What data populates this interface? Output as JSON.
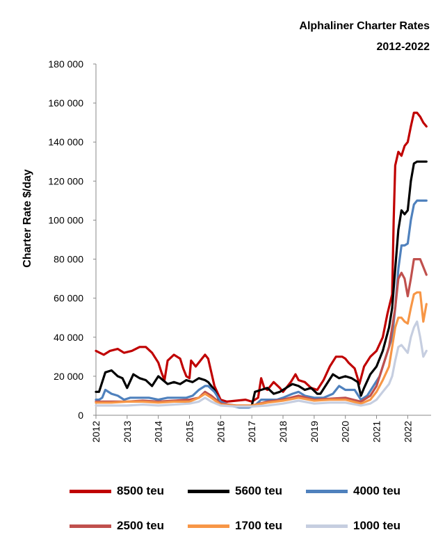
{
  "chart_data": {
    "type": "line",
    "title": "Alphaliner Charter Rates",
    "subtitle": "2012-2022",
    "ylabel": "Charter Rate $/day",
    "xlabel": "",
    "ylim": [
      0,
      180000
    ],
    "xlim": [
      2012,
      2022.75
    ],
    "yticks": [
      0,
      20000,
      40000,
      60000,
      80000,
      100000,
      120000,
      140000,
      160000,
      180000
    ],
    "ytick_labels": [
      "0",
      "20 000",
      "40 000",
      "60 000",
      "80 000",
      "100 000",
      "120 000",
      "140 000",
      "160 000",
      "180 000"
    ],
    "xticks": [
      2012,
      2013,
      2014,
      2015,
      2016,
      2017,
      2018,
      2019,
      2020,
      2021,
      2022
    ],
    "xtick_labels": [
      "2012",
      "2013",
      "2014",
      "2015",
      "2016",
      "2017",
      "2018",
      "2019",
      "2020",
      "2021",
      "2022"
    ],
    "grid": false,
    "legend_position": "bottom",
    "series": [
      {
        "name": "8500 teu",
        "color": "#C00000",
        "x": [
          2012,
          2012.25,
          2012.45,
          2012.7,
          2012.9,
          2013.15,
          2013.4,
          2013.6,
          2013.8,
          2014.0,
          2014.1,
          2014.2,
          2014.3,
          2014.5,
          2014.7,
          2014.8,
          2014.9,
          2015.0,
          2015.05,
          2015.2,
          2015.4,
          2015.5,
          2015.6,
          2015.8,
          2016.0,
          2016.2,
          2016.5,
          2016.8,
          2017.0,
          2017.2,
          2017.3,
          2017.4,
          2017.5,
          2017.7,
          2017.9,
          2018.0,
          2018.1,
          2018.25,
          2018.4,
          2018.5,
          2018.7,
          2018.9,
          2019.1,
          2019.3,
          2019.5,
          2019.7,
          2019.9,
          2020.0,
          2020.1,
          2020.3,
          2020.45,
          2020.6,
          2020.8,
          2021.0,
          2021.2,
          2021.35,
          2021.5,
          2021.55,
          2021.6,
          2021.7,
          2021.8,
          2021.9,
          2022.0,
          2022.1,
          2022.2,
          2022.3,
          2022.4,
          2022.5,
          2022.6
        ],
        "y": [
          33000,
          31000,
          33000,
          34000,
          32000,
          33000,
          35000,
          35000,
          32000,
          27000,
          22000,
          18000,
          28000,
          31000,
          29000,
          24000,
          20000,
          19000,
          28000,
          25000,
          29000,
          31000,
          29000,
          15000,
          8000,
          7000,
          7500,
          8000,
          7000,
          9000,
          19000,
          14000,
          13000,
          17000,
          14000,
          12000,
          14000,
          17000,
          21000,
          18000,
          17000,
          14000,
          13000,
          18000,
          25000,
          30000,
          30000,
          29000,
          27000,
          24000,
          16000,
          25000,
          30000,
          33000,
          40000,
          52000,
          62000,
          100000,
          128000,
          135000,
          133000,
          138000,
          140000,
          148000,
          155000,
          155000,
          153000,
          150000,
          148000
        ]
      },
      {
        "name": "5600 teu",
        "color": "#000000",
        "x": [
          2012,
          2012.1,
          2012.2,
          2012.3,
          2012.5,
          2012.7,
          2012.85,
          2013.0,
          2013.2,
          2013.4,
          2013.6,
          2013.8,
          2014.0,
          2014.15,
          2014.3,
          2014.5,
          2014.7,
          2014.9,
          2015.1,
          2015.3,
          2015.5,
          2015.6,
          2015.8,
          2016.0,
          2016.3,
          2016.6,
          2016.9,
          2017.0,
          2017.1,
          2017.3,
          2017.5,
          2017.7,
          2017.9,
          2018.1,
          2018.3,
          2018.5,
          2018.7,
          2018.9,
          2019.1,
          2019.2,
          2019.4,
          2019.6,
          2019.8,
          2020.0,
          2020.2,
          2020.4,
          2020.5,
          2020.6,
          2020.8,
          2021.0,
          2021.2,
          2021.4,
          2021.5,
          2021.6,
          2021.7,
          2021.8,
          2021.9,
          2022.0,
          2022.1,
          2022.2,
          2022.3,
          2022.4,
          2022.5,
          2022.6
        ],
        "y": [
          12000,
          12000,
          17000,
          22000,
          23000,
          20000,
          19000,
          14000,
          21000,
          19000,
          18000,
          15000,
          20000,
          18000,
          16000,
          17000,
          16000,
          18000,
          17000,
          19000,
          18000,
          17000,
          13000,
          6000,
          5000,
          4500,
          4500,
          5000,
          12000,
          13000,
          14000,
          11000,
          12000,
          14000,
          16000,
          15000,
          13000,
          14000,
          11000,
          11000,
          16000,
          21000,
          19000,
          20000,
          19000,
          17000,
          10000,
          14000,
          21000,
          25000,
          33000,
          45000,
          55000,
          75000,
          95000,
          105000,
          103000,
          105000,
          120000,
          129000,
          130000,
          130000,
          130000,
          130000
        ]
      },
      {
        "name": "4000 teu",
        "color": "#4F81BD",
        "x": [
          2012,
          2012.1,
          2012.2,
          2012.3,
          2012.5,
          2012.7,
          2012.9,
          2013.1,
          2013.4,
          2013.7,
          2014.0,
          2014.3,
          2014.6,
          2014.9,
          2015.1,
          2015.3,
          2015.5,
          2015.6,
          2015.8,
          2016.0,
          2016.3,
          2016.6,
          2016.9,
          2017.1,
          2017.3,
          2017.5,
          2017.8,
          2018.0,
          2018.3,
          2018.5,
          2018.7,
          2019.0,
          2019.3,
          2019.6,
          2019.8,
          2020.0,
          2020.3,
          2020.5,
          2020.7,
          2020.9,
          2021.1,
          2021.3,
          2021.5,
          2021.6,
          2021.7,
          2021.8,
          2021.9,
          2022.0,
          2022.1,
          2022.2,
          2022.3,
          2022.4,
          2022.5,
          2022.6
        ],
        "y": [
          8000,
          8000,
          9000,
          13000,
          11000,
          10000,
          8000,
          9000,
          9000,
          9000,
          8000,
          9000,
          9000,
          9000,
          10000,
          13000,
          15000,
          15000,
          12000,
          7000,
          5000,
          4000,
          4000,
          5000,
          8000,
          8000,
          8000,
          9000,
          11000,
          12000,
          10000,
          9000,
          9000,
          11000,
          15000,
          13000,
          13000,
          8000,
          10000,
          15000,
          20000,
          30000,
          40000,
          55000,
          75000,
          87000,
          87000,
          88000,
          100000,
          108000,
          110000,
          110000,
          110000,
          110000
        ]
      },
      {
        "name": "2500 teu",
        "color": "#C0504D",
        "x": [
          2012,
          2012.5,
          2013.0,
          2013.5,
          2014.0,
          2014.5,
          2015.0,
          2015.3,
          2015.5,
          2015.7,
          2016.0,
          2016.5,
          2017.0,
          2017.5,
          2018.0,
          2018.5,
          2019.0,
          2019.5,
          2020.0,
          2020.5,
          2020.8,
          2021.0,
          2021.2,
          2021.4,
          2021.5,
          2021.6,
          2021.7,
          2021.8,
          2021.9,
          2022.0,
          2022.1,
          2022.2,
          2022.3,
          2022.4,
          2022.5,
          2022.6
        ],
        "y": [
          7000,
          7000,
          7000,
          7500,
          7000,
          7500,
          8000,
          9000,
          12000,
          10000,
          6000,
          5000,
          5000,
          7000,
          8000,
          10000,
          8000,
          8500,
          9000,
          7000,
          10000,
          15000,
          25000,
          35000,
          45000,
          55000,
          70000,
          73000,
          70000,
          61000,
          70000,
          80000,
          80000,
          80000,
          76000,
          72000
        ]
      },
      {
        "name": "1700 teu",
        "color": "#F79646",
        "x": [
          2012,
          2012.5,
          2013.0,
          2013.5,
          2014.0,
          2014.5,
          2015.0,
          2015.3,
          2015.5,
          2015.7,
          2016.0,
          2016.5,
          2017.0,
          2017.5,
          2018.0,
          2018.5,
          2019.0,
          2019.5,
          2020.0,
          2020.5,
          2020.8,
          2021.0,
          2021.2,
          2021.4,
          2021.5,
          2021.6,
          2021.7,
          2021.8,
          2021.9,
          2022.0,
          2022.1,
          2022.2,
          2022.3,
          2022.4,
          2022.5,
          2022.6
        ],
        "y": [
          6500,
          6500,
          7000,
          7000,
          6500,
          7000,
          7000,
          9000,
          11000,
          9000,
          5500,
          5000,
          5000,
          6500,
          7500,
          9000,
          7500,
          8000,
          8000,
          6000,
          8000,
          12000,
          18000,
          25000,
          35000,
          45000,
          50000,
          50000,
          48000,
          47000,
          55000,
          62000,
          63000,
          63000,
          48000,
          57000
        ]
      },
      {
        "name": "1000 teu",
        "color": "#C6CEE0",
        "x": [
          2012,
          2012.5,
          2013.0,
          2013.5,
          2014.0,
          2014.5,
          2015.0,
          2015.3,
          2015.5,
          2015.7,
          2016.0,
          2016.5,
          2017.0,
          2017.5,
          2018.0,
          2018.5,
          2019.0,
          2019.5,
          2020.0,
          2020.5,
          2020.8,
          2021.0,
          2021.2,
          2021.4,
          2021.5,
          2021.6,
          2021.7,
          2021.8,
          2021.9,
          2022.0,
          2022.1,
          2022.2,
          2022.3,
          2022.4,
          2022.5,
          2022.6
        ],
        "y": [
          5000,
          5000,
          5000,
          5500,
          5000,
          5500,
          6000,
          7000,
          9000,
          7000,
          5000,
          4500,
          4500,
          5000,
          6000,
          7500,
          6000,
          6500,
          6500,
          5000,
          6000,
          8000,
          12000,
          16000,
          20000,
          28000,
          35000,
          36000,
          34000,
          32000,
          40000,
          45000,
          48000,
          40000,
          30000,
          33000
        ]
      }
    ]
  }
}
